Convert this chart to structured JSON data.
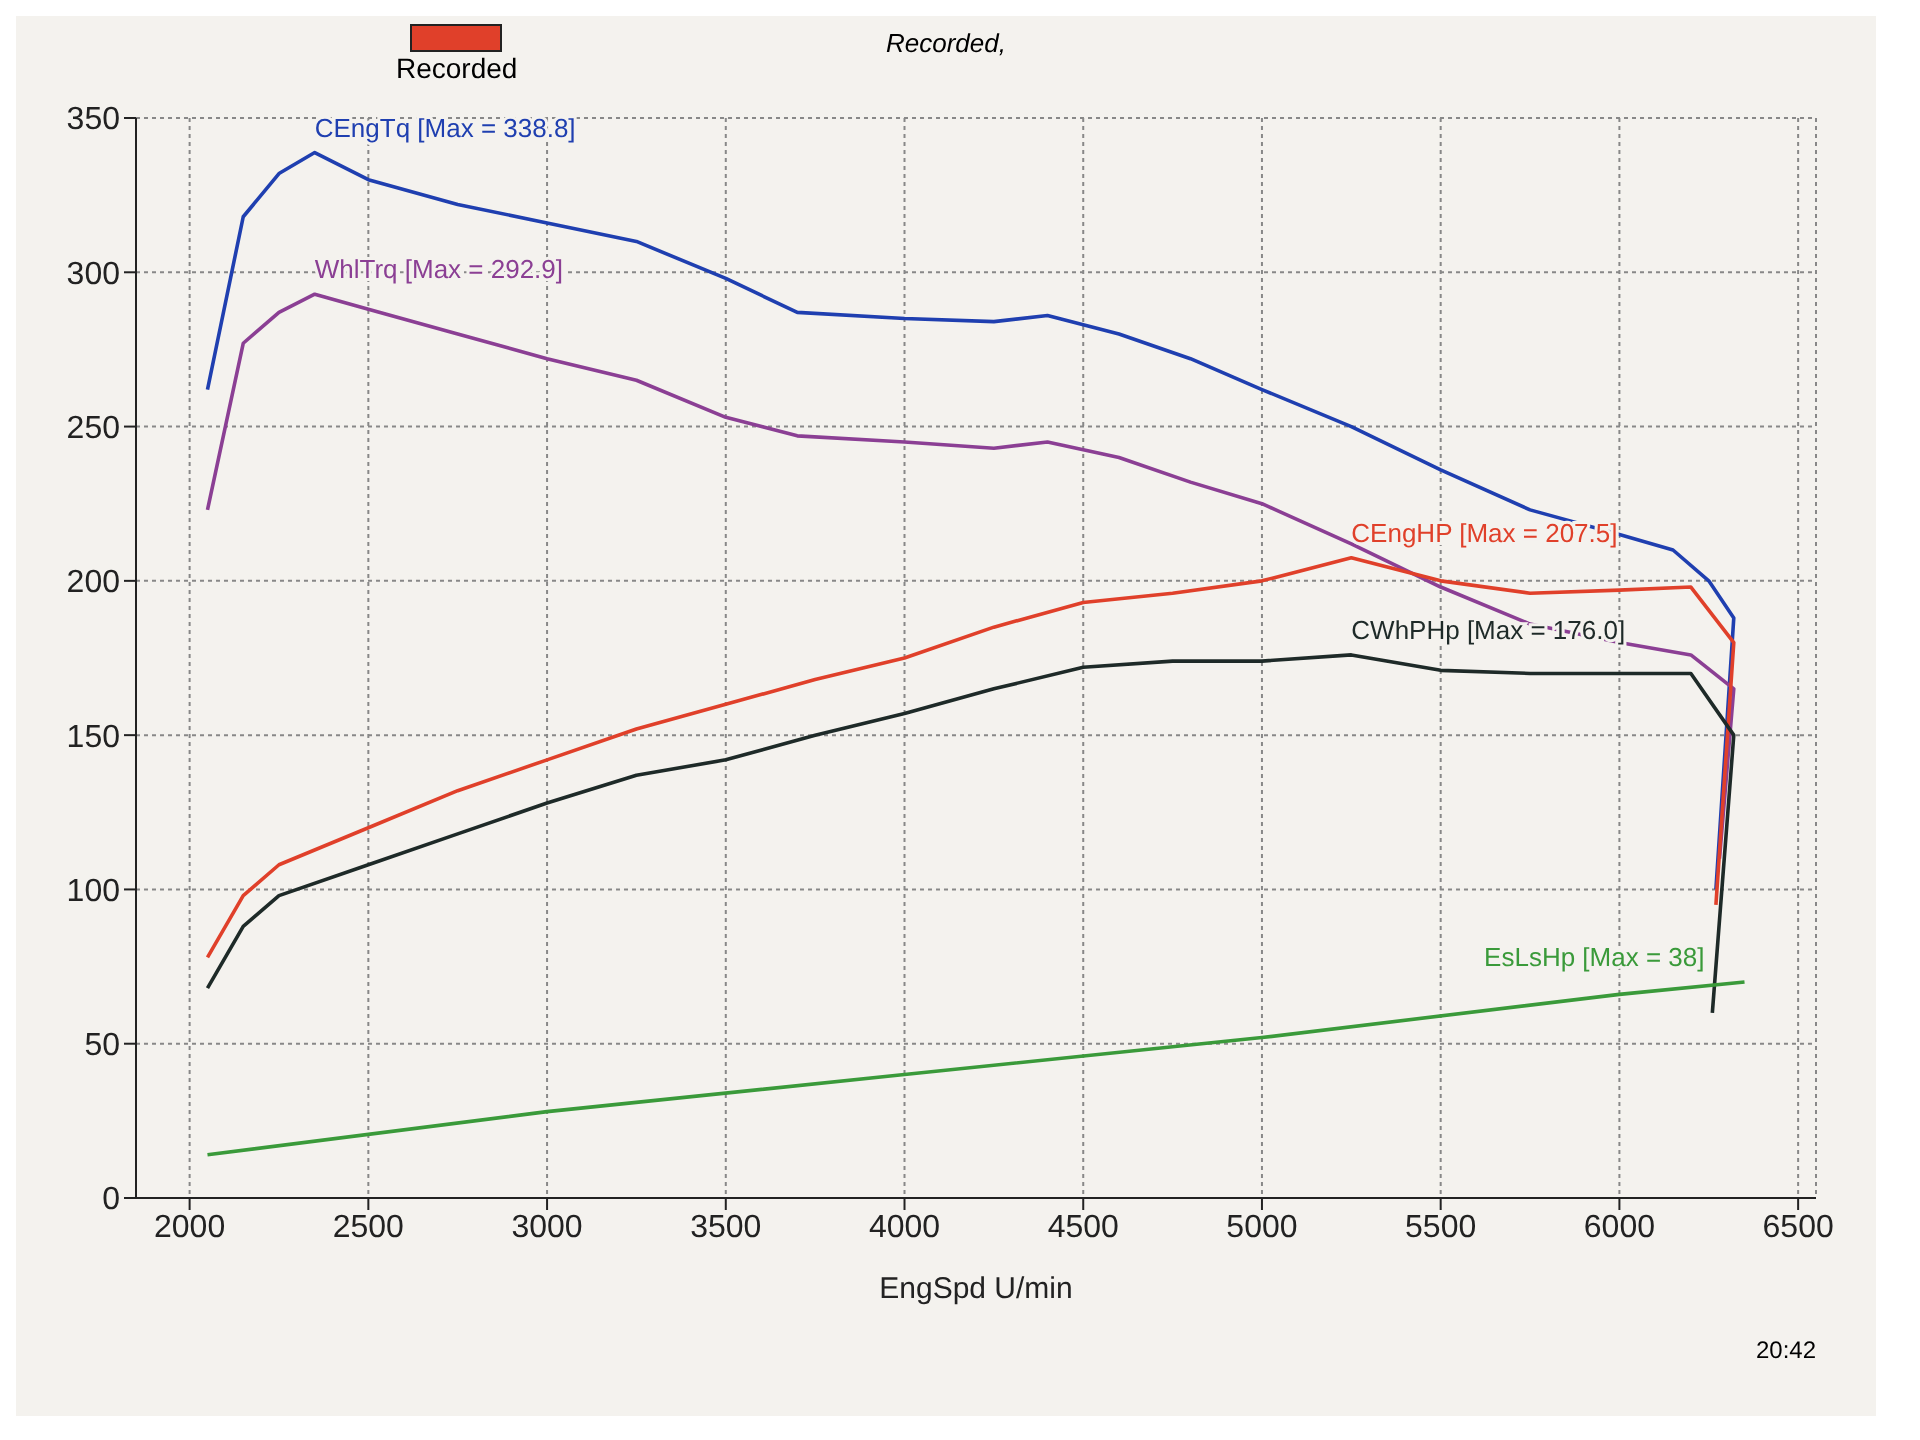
{
  "chart_data": {
    "type": "line",
    "subtitle": "Recorded,",
    "xlabel": "EngSpd U/min",
    "annotations": [
      "Recorded",
      "20:42"
    ],
    "xlim": [
      1850,
      6550
    ],
    "xticks": [
      2000,
      2500,
      3000,
      3500,
      4000,
      4500,
      5000,
      5500,
      6000,
      6500
    ],
    "ylim": [
      0,
      350
    ],
    "yticks": [
      0,
      50,
      100,
      150,
      200,
      250,
      300,
      350
    ],
    "grid": true,
    "marker": "none",
    "line_style": "solid",
    "series": [
      {
        "name": "CEngTq [Max = 338.8]",
        "color": "#1f3fb0",
        "x": [
          2050,
          2150,
          2250,
          2350,
          2500,
          2750,
          3000,
          3250,
          3500,
          3700,
          4000,
          4250,
          4400,
          4600,
          4800,
          5000,
          5250,
          5500,
          5750,
          6000,
          6150,
          6250,
          6320,
          6270
        ],
        "values": [
          262,
          318,
          332,
          338.8,
          330,
          322,
          316,
          310,
          298,
          287,
          285,
          284,
          286,
          280,
          272,
          262,
          250,
          236,
          223,
          215,
          210,
          200,
          188,
          100
        ]
      },
      {
        "name": "WhlTrq [Max = 292.9]",
        "color": "#8b3f94",
        "x": [
          2050,
          2150,
          2250,
          2350,
          2500,
          2750,
          3000,
          3250,
          3500,
          3700,
          4000,
          4250,
          4400,
          4600,
          4800,
          5000,
          5250,
          5500,
          5750,
          6000,
          6200,
          6320,
          6280
        ],
        "values": [
          223,
          277,
          287,
          292.9,
          288,
          280,
          272,
          265,
          253,
          247,
          245,
          243,
          245,
          240,
          232,
          225,
          212,
          198,
          186,
          180,
          176,
          165,
          110
        ]
      },
      {
        "name": "CEngHP [Max = 207.5]",
        "color": "#e0402a",
        "x": [
          2050,
          2150,
          2250,
          2500,
          2750,
          3000,
          3250,
          3500,
          3750,
          4000,
          4250,
          4500,
          4750,
          5000,
          5250,
          5500,
          5750,
          6000,
          6200,
          6320,
          6270
        ],
        "values": [
          78,
          98,
          108,
          120,
          132,
          142,
          152,
          160,
          168,
          175,
          185,
          193,
          196,
          200,
          207.5,
          200,
          196,
          197,
          198,
          180,
          95
        ]
      },
      {
        "name": "CWhPHp [Max = 176.0]",
        "color": "#1e2a28",
        "x": [
          2050,
          2150,
          2250,
          2500,
          2750,
          3000,
          3250,
          3500,
          3750,
          4000,
          4250,
          4500,
          4750,
          5000,
          5250,
          5500,
          5750,
          6000,
          6200,
          6320,
          6260
        ],
        "values": [
          68,
          88,
          98,
          108,
          118,
          128,
          137,
          142,
          150,
          157,
          165,
          172,
          174,
          174,
          176,
          171,
          170,
          170,
          170,
          150,
          60
        ]
      },
      {
        "name": "EsLsHp [Max = 38]",
        "color": "#3a9a3a",
        "x": [
          2050,
          3000,
          4000,
          5000,
          6000,
          6350
        ],
        "values": [
          14,
          28,
          40,
          52,
          66,
          70
        ]
      }
    ]
  }
}
